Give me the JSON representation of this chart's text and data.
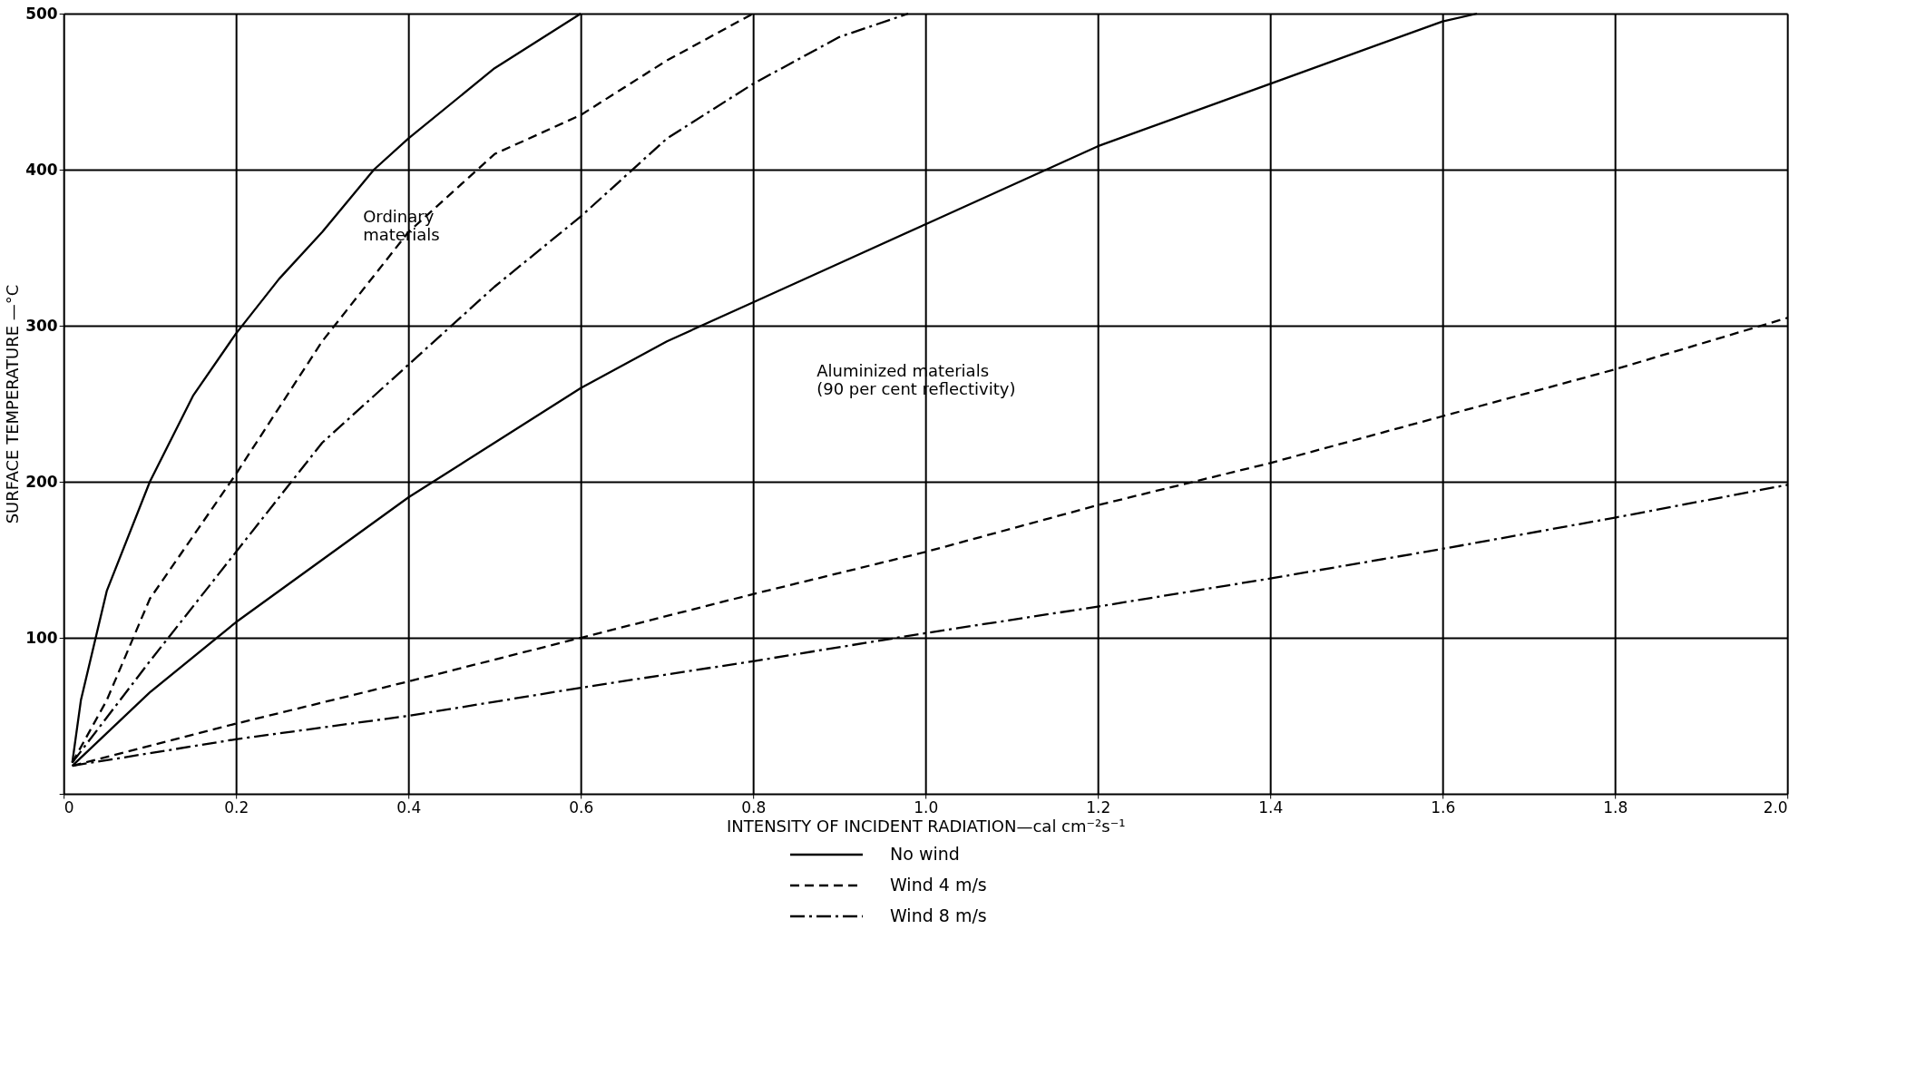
{
  "chart_data": {
    "type": "line",
    "xlabel": "INTENSITY OF INCIDENT RADIATION—cal cm⁻²s⁻¹",
    "ylabel": "SURFACE   TEMPERATURE —°C",
    "xlim": [
      0,
      2.0
    ],
    "ylim": [
      0,
      500
    ],
    "xticks": [
      0,
      0.2,
      0.4,
      0.6,
      0.8,
      {
        "value": 1,
        "label": "1.0"
      },
      1.2,
      1.4,
      1.6,
      1.8,
      {
        "value": 2,
        "label": "2.0"
      }
    ],
    "yticks": [
      {
        "value": 0,
        "label": null
      },
      100,
      200,
      300,
      400,
      500
    ],
    "grid": true,
    "legend": "bottom",
    "series": [
      {
        "name": "No wind",
        "color": "#000000",
        "line_style": "solid",
        "x": [
          0.01,
          0.02,
          0.05,
          0.1,
          0.15,
          0.2,
          0.25,
          0.3,
          0.36,
          0.4,
          0.5,
          0.6
        ],
        "values": [
          20,
          60,
          130,
          200,
          255,
          295,
          330,
          360,
          400,
          420,
          465,
          500
        ]
      },
      {
        "name": "Wind  4 m/s",
        "color": "#000000",
        "line_style": "dashed",
        "x": [
          0.01,
          0.05,
          0.1,
          0.2,
          0.3,
          0.4,
          0.5,
          0.6,
          0.7,
          0.8
        ],
        "values": [
          20,
          60,
          125,
          205,
          290,
          360,
          410,
          435,
          470,
          500
        ]
      },
      {
        "name": "Wind  8 m/s",
        "color": "#000000",
        "line_style": "dashdot",
        "x": [
          0.01,
          0.1,
          0.2,
          0.3,
          0.4,
          0.5,
          0.6,
          0.7,
          0.8,
          0.9,
          0.98
        ],
        "values": [
          20,
          85,
          155,
          225,
          275,
          325,
          370,
          420,
          455,
          485,
          500
        ]
      },
      {
        "color": "#000000",
        "line_style": "solid",
        "x": [
          0.01,
          0.1,
          0.2,
          0.3,
          0.4,
          0.5,
          0.6,
          0.7,
          0.8,
          0.9,
          1.0,
          1.2,
          1.4,
          1.6,
          1.64
        ],
        "values": [
          18,
          65,
          110,
          150,
          190,
          225,
          260,
          290,
          315,
          340,
          365,
          415,
          455,
          495,
          500
        ]
      },
      {
        "color": "#000000",
        "line_style": "dashed",
        "x": [
          0.01,
          0.2,
          0.4,
          0.6,
          0.8,
          1.0,
          1.2,
          1.4,
          1.6,
          1.8,
          2.0
        ],
        "values": [
          18,
          45,
          72,
          100,
          128,
          155,
          185,
          212,
          242,
          272,
          305
        ]
      },
      {
        "color": "#000000",
        "line_style": "dashdot",
        "x": [
          0.01,
          0.2,
          0.4,
          0.6,
          0.8,
          1.0,
          1.2,
          1.4,
          1.6,
          1.8,
          2.0
        ],
        "values": [
          18,
          35,
          50,
          68,
          85,
          103,
          120,
          138,
          157,
          177,
          198
        ]
      }
    ],
    "annotations": [
      "Ordinary\nmaterials",
      "Aluminized  materials\n(90 per cent reflectivity)"
    ]
  }
}
